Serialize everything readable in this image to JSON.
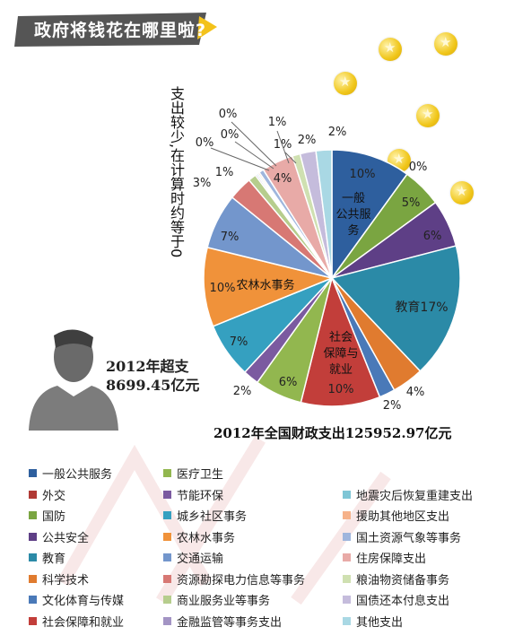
{
  "header": {
    "title": "政府将钱花在哪里啦?"
  },
  "side_note": "支出较少,在计算时约等于0",
  "overspend": {
    "line1": "2012年超支",
    "line2": "8699.45亿元"
  },
  "total_label": "2012年全国财政支出125952.97亿元",
  "colors": {
    "header_bg": "#5a5a5a",
    "header_accent": "#f3c21b",
    "coin": "#f0c61a"
  },
  "chart_data": {
    "type": "pie",
    "slices": [
      {
        "name": "一般公共服务",
        "value": 10,
        "color": "#2e5f9e",
        "label": "10%",
        "inner": "一般公共服务"
      },
      {
        "name": "外交",
        "value": 0,
        "color": "#b13a35",
        "label": "0%"
      },
      {
        "name": "国防",
        "value": 5,
        "color": "#7aa541",
        "label": "5%"
      },
      {
        "name": "公共安全",
        "value": 6,
        "color": "#5e3f86",
        "label": "6%"
      },
      {
        "name": "教育",
        "value": 17,
        "color": "#2b8aa7",
        "label": "教育17%"
      },
      {
        "name": "科学技术",
        "value": 4,
        "color": "#e07b2f",
        "label": "4%"
      },
      {
        "name": "文化体育与传媒",
        "value": 2,
        "color": "#4a79b8",
        "label": "2%"
      },
      {
        "name": "社会保障和就业",
        "value": 10,
        "color": "#c23e3a",
        "label": "10%",
        "inner": "社会保障与就业"
      },
      {
        "name": "医疗卫生",
        "value": 6,
        "color": "#92b74f",
        "label": "6%"
      },
      {
        "name": "节能环保",
        "value": 2,
        "color": "#7b5aa0",
        "label": "2%"
      },
      {
        "name": "城乡社区事务",
        "value": 7,
        "color": "#35a0c0",
        "label": "7%"
      },
      {
        "name": "农林水事务",
        "value": 10,
        "color": "#f0923a",
        "label": "10%",
        "inner": "农林水事务"
      },
      {
        "name": "交通运输",
        "value": 7,
        "color": "#7396cc",
        "label": "7%"
      },
      {
        "name": "资源勘探电力信息等事务",
        "value": 3,
        "color": "#d77874",
        "label": "3%"
      },
      {
        "name": "商业服务业等事务",
        "value": 1,
        "color": "#b6cd8d",
        "label": "1%"
      },
      {
        "name": "金融监管等事务支出",
        "value": 0.2,
        "color": "#a394c4",
        "label": "0%"
      },
      {
        "name": "地震灾后恢复重建支出",
        "value": 0.2,
        "color": "#7fc6d6",
        "label": "0%"
      },
      {
        "name": "援助其他地区支出",
        "value": 0.2,
        "color": "#f6b28a",
        "label": "0%"
      },
      {
        "name": "国土资源气象等事务",
        "value": 0.6,
        "color": "#9fb6dd",
        "label": "1%"
      },
      {
        "name": "住房保障支出",
        "value": 4,
        "color": "#e8aaa7",
        "label": "4%"
      },
      {
        "name": "粮油物资储备事务",
        "value": 1,
        "color": "#cfe0b1",
        "label": "1%"
      },
      {
        "name": "国债还本付息支出",
        "value": 2,
        "color": "#c5bcdc",
        "label": "2%"
      },
      {
        "name": "其他支出",
        "value": 2,
        "color": "#a9d8e4",
        "label": "2%"
      }
    ],
    "legend": [
      {
        "label": "一般公共服务",
        "color": "#2e5f9e"
      },
      {
        "label": "医疗卫生",
        "color": "#92b74f"
      },
      {
        "label": "",
        "color": ""
      },
      {
        "label": "外交",
        "color": "#b13a35"
      },
      {
        "label": "节能环保",
        "color": "#7b5aa0"
      },
      {
        "label": "地震灾后恢复重建支出",
        "color": "#7fc6d6"
      },
      {
        "label": "国防",
        "color": "#7aa541"
      },
      {
        "label": "城乡社区事务",
        "color": "#35a0c0"
      },
      {
        "label": "援助其他地区支出",
        "color": "#f6b28a"
      },
      {
        "label": "公共安全",
        "color": "#5e3f86"
      },
      {
        "label": "农林水事务",
        "color": "#f0923a"
      },
      {
        "label": "国土资源气象等事务",
        "color": "#9fb6dd"
      },
      {
        "label": "教育",
        "color": "#2b8aa7"
      },
      {
        "label": "交通运输",
        "color": "#7396cc"
      },
      {
        "label": "住房保障支出",
        "color": "#e8aaa7"
      },
      {
        "label": "科学技术",
        "color": "#e07b2f"
      },
      {
        "label": "资源勘探电力信息等事务",
        "color": "#d77874"
      },
      {
        "label": "粮油物资储备事务",
        "color": "#cfe0b1"
      },
      {
        "label": "文化体育与传媒",
        "color": "#4a79b8"
      },
      {
        "label": "商业服务业等事务",
        "color": "#b6cd8d"
      },
      {
        "label": "国债还本付息支出",
        "color": "#c5bcdc"
      },
      {
        "label": "社会保障和就业",
        "color": "#c23e3a"
      },
      {
        "label": "金融监管等事务支出",
        "color": "#a394c4"
      },
      {
        "label": "其他支出",
        "color": "#a9d8e4"
      }
    ]
  }
}
